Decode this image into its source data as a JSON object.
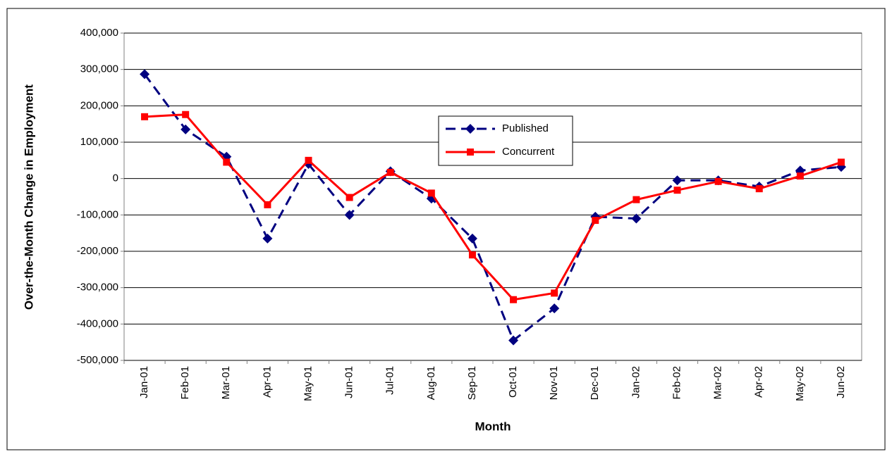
{
  "chart_data": {
    "type": "line",
    "y_label": "Over-the-Month Change in Employment",
    "x_label": "Month",
    "categories": [
      "Jan-01",
      "Feb-01",
      "Mar-01",
      "Apr-01",
      "May-01",
      "Jun-01",
      "Jul-01",
      "Aug-01",
      "Sep-01",
      "Oct-01",
      "Nov-01",
      "Dec-01",
      "Jan-02",
      "Feb-02",
      "Mar-02",
      "Apr-02",
      "May-02",
      "Jun-02"
    ],
    "series": [
      {
        "name": "Published",
        "color": "#000080",
        "dashed": true,
        "marker": "diamond",
        "values": [
          287000,
          135000,
          60000,
          -165000,
          40000,
          -100000,
          20000,
          -55000,
          -165000,
          -445000,
          -357000,
          -105000,
          -110000,
          -5000,
          -5000,
          -22000,
          22000,
          32000
        ]
      },
      {
        "name": "Concurrent",
        "color": "#ff0000",
        "dashed": false,
        "marker": "square",
        "values": [
          170000,
          176000,
          45000,
          -72000,
          50000,
          -52000,
          17000,
          -40000,
          -210000,
          -333000,
          -315000,
          -115000,
          -58000,
          -32000,
          -8000,
          -28000,
          7000,
          45000
        ]
      }
    ],
    "ylim": [
      -500000,
      400000
    ],
    "yticks": [
      {
        "value": -500000,
        "label": "-500,000"
      },
      {
        "value": -400000,
        "label": "-400,000"
      },
      {
        "value": -300000,
        "label": "-300,000"
      },
      {
        "value": -200000,
        "label": "-200,000"
      },
      {
        "value": -100000,
        "label": "-100,000"
      },
      0,
      {
        "value": 100000,
        "label": "100,000"
      },
      {
        "value": 200000,
        "label": "200,000"
      },
      {
        "value": 300000,
        "label": "300,000"
      },
      {
        "value": 400000,
        "label": "400,000"
      }
    ],
    "grid": true,
    "legend_position": "center"
  }
}
